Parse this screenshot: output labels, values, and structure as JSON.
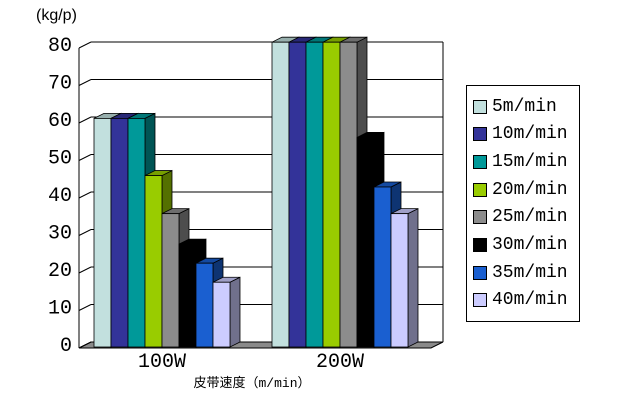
{
  "chart_data": {
    "type": "bar",
    "style": "3d-clustered-column",
    "ylabel": "(kg/p)",
    "xlabel": "皮带速度（m/min）",
    "categories": [
      "100W",
      "200W"
    ],
    "series": [
      {
        "name": "5m/min",
        "color": "#C2E0DE",
        "values": [
          60,
          80
        ]
      },
      {
        "name": "10m/min",
        "color": "#333399",
        "values": [
          60,
          80
        ]
      },
      {
        "name": "15m/min",
        "color": "#009999",
        "values": [
          60,
          80
        ]
      },
      {
        "name": "20m/min",
        "color": "#99CC00",
        "values": [
          45,
          80
        ]
      },
      {
        "name": "25m/min",
        "color": "#8C8C8C",
        "values": [
          35,
          80
        ]
      },
      {
        "name": "30m/min",
        "color": "#000000",
        "values": [
          27,
          55
        ]
      },
      {
        "name": "35m/min",
        "color": "#1A5FD0",
        "values": [
          22,
          42
        ]
      },
      {
        "name": "40m/min",
        "color": "#CCCCFF",
        "values": [
          17,
          35
        ]
      }
    ],
    "ylim": [
      0,
      80
    ],
    "y_ticks": [
      0,
      10,
      20,
      30,
      40,
      50,
      60,
      70,
      80
    ],
    "grid": true,
    "legend_position": "right",
    "floor_color": "#8A8A8A",
    "axis_color": "#000000",
    "background": "#FFFFFF"
  }
}
